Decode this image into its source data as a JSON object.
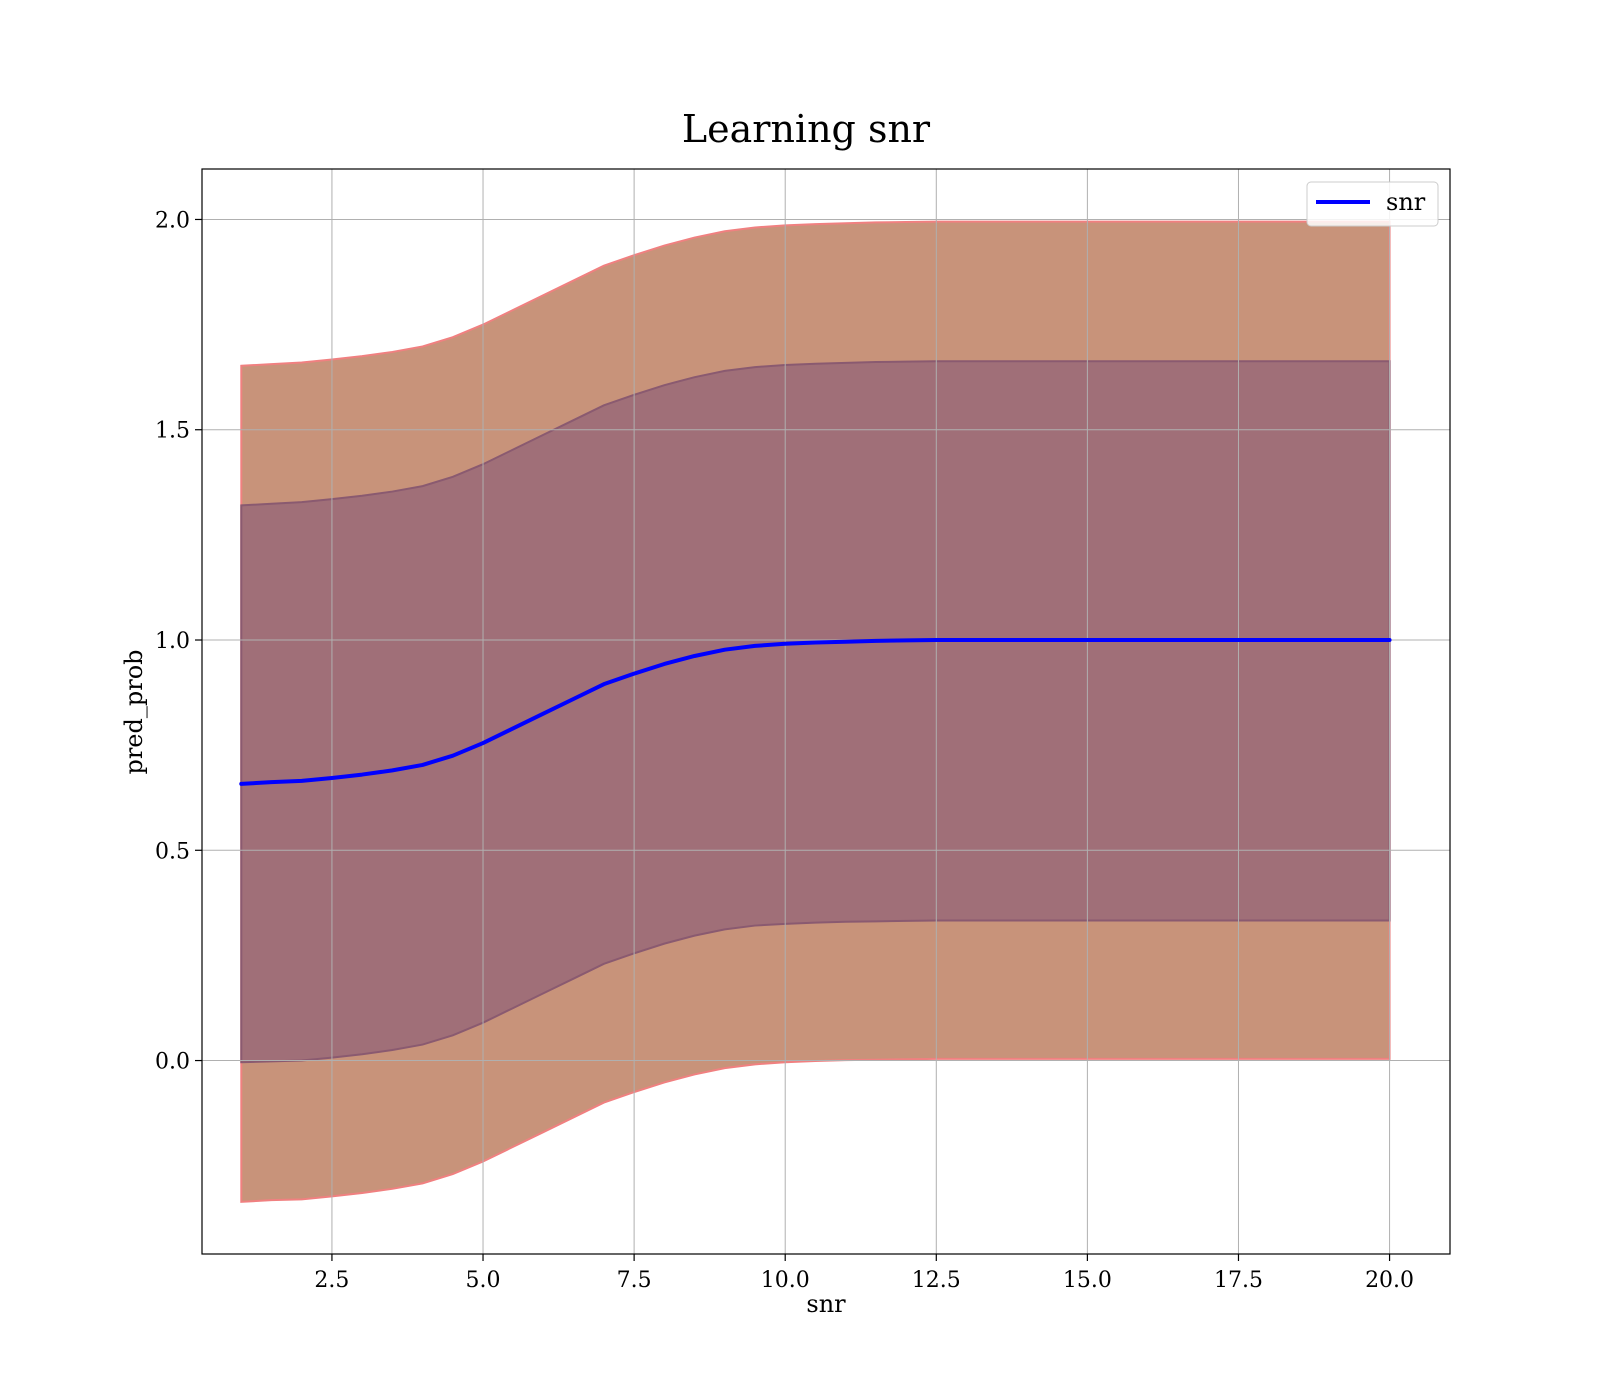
{
  "chart_data": {
    "type": "line",
    "title": "Learning snr",
    "xlabel": "snr",
    "ylabel": "pred_prob",
    "xlim": [
      0.35,
      21.0
    ],
    "ylim": [
      -0.46,
      2.12
    ],
    "grid": true,
    "legend_position": "top-right",
    "x_ticks": [
      2.5,
      5.0,
      7.5,
      10.0,
      12.5,
      15.0,
      17.5,
      20.0
    ],
    "x_tick_labels": [
      "2.5",
      "5.0",
      "7.5",
      "10.0",
      "12.5",
      "15.0",
      "17.5",
      "20.0"
    ],
    "y_ticks": [
      0.0,
      0.5,
      1.0,
      1.5,
      2.0
    ],
    "y_tick_labels": [
      "0.0",
      "0.5",
      "1.0",
      "1.5",
      "2.0"
    ],
    "x": [
      1.0,
      1.5,
      2.0,
      2.5,
      3.0,
      3.5,
      4.0,
      4.5,
      5.0,
      5.5,
      6.0,
      6.5,
      7.0,
      7.5,
      8.0,
      8.5,
      9.0,
      9.5,
      10.0,
      10.5,
      11.0,
      11.5,
      12.0,
      12.5,
      13.0,
      14.0,
      15.0,
      16.0,
      17.0,
      18.0,
      19.0,
      20.0
    ],
    "series": [
      {
        "name": "snr",
        "color": "#0000ff",
        "values": [
          0.658,
          0.662,
          0.665,
          0.672,
          0.68,
          0.69,
          0.703,
          0.725,
          0.755,
          0.79,
          0.825,
          0.86,
          0.895,
          0.92,
          0.943,
          0.962,
          0.977,
          0.986,
          0.991,
          0.994,
          0.996,
          0.998,
          0.999,
          1.0,
          1.0,
          1.0,
          1.0,
          1.0,
          1.0,
          1.0,
          1.0,
          1.0
        ]
      }
    ],
    "bands": [
      {
        "color": "#c8937a",
        "edge_color": "#f08080",
        "lower": [
          -0.336,
          -0.332,
          -0.33,
          -0.323,
          -0.315,
          -0.305,
          -0.292,
          -0.27,
          -0.24,
          -0.205,
          -0.17,
          -0.135,
          -0.1,
          -0.075,
          -0.052,
          -0.033,
          -0.018,
          -0.009,
          -0.004,
          -0.001,
          0.001,
          0.002,
          0.003,
          0.004,
          0.004,
          0.004,
          0.004,
          0.004,
          0.004,
          0.004,
          0.004,
          0.004
        ],
        "upper": [
          1.652,
          1.656,
          1.66,
          1.667,
          1.675,
          1.685,
          1.698,
          1.72,
          1.75,
          1.785,
          1.82,
          1.855,
          1.89,
          1.915,
          1.938,
          1.957,
          1.972,
          1.981,
          1.986,
          1.989,
          1.991,
          1.993,
          1.994,
          1.995,
          1.995,
          1.995,
          1.995,
          1.995,
          1.995,
          1.995,
          1.995,
          1.995
        ]
      },
      {
        "color": "#a06f78",
        "edge_color": "#8a5a70",
        "lower": [
          -0.004,
          -0.002,
          0.0,
          0.007,
          0.015,
          0.025,
          0.038,
          0.06,
          0.09,
          0.125,
          0.16,
          0.195,
          0.23,
          0.255,
          0.278,
          0.297,
          0.312,
          0.321,
          0.325,
          0.328,
          0.33,
          0.331,
          0.332,
          0.333,
          0.333,
          0.333,
          0.333,
          0.333,
          0.333,
          0.333,
          0.333,
          0.333
        ],
        "upper": [
          1.32,
          1.324,
          1.328,
          1.335,
          1.343,
          1.353,
          1.366,
          1.388,
          1.418,
          1.453,
          1.488,
          1.523,
          1.558,
          1.583,
          1.606,
          1.625,
          1.64,
          1.649,
          1.654,
          1.657,
          1.659,
          1.661,
          1.662,
          1.663,
          1.663,
          1.663,
          1.663,
          1.663,
          1.663,
          1.663,
          1.663,
          1.663
        ]
      }
    ]
  }
}
